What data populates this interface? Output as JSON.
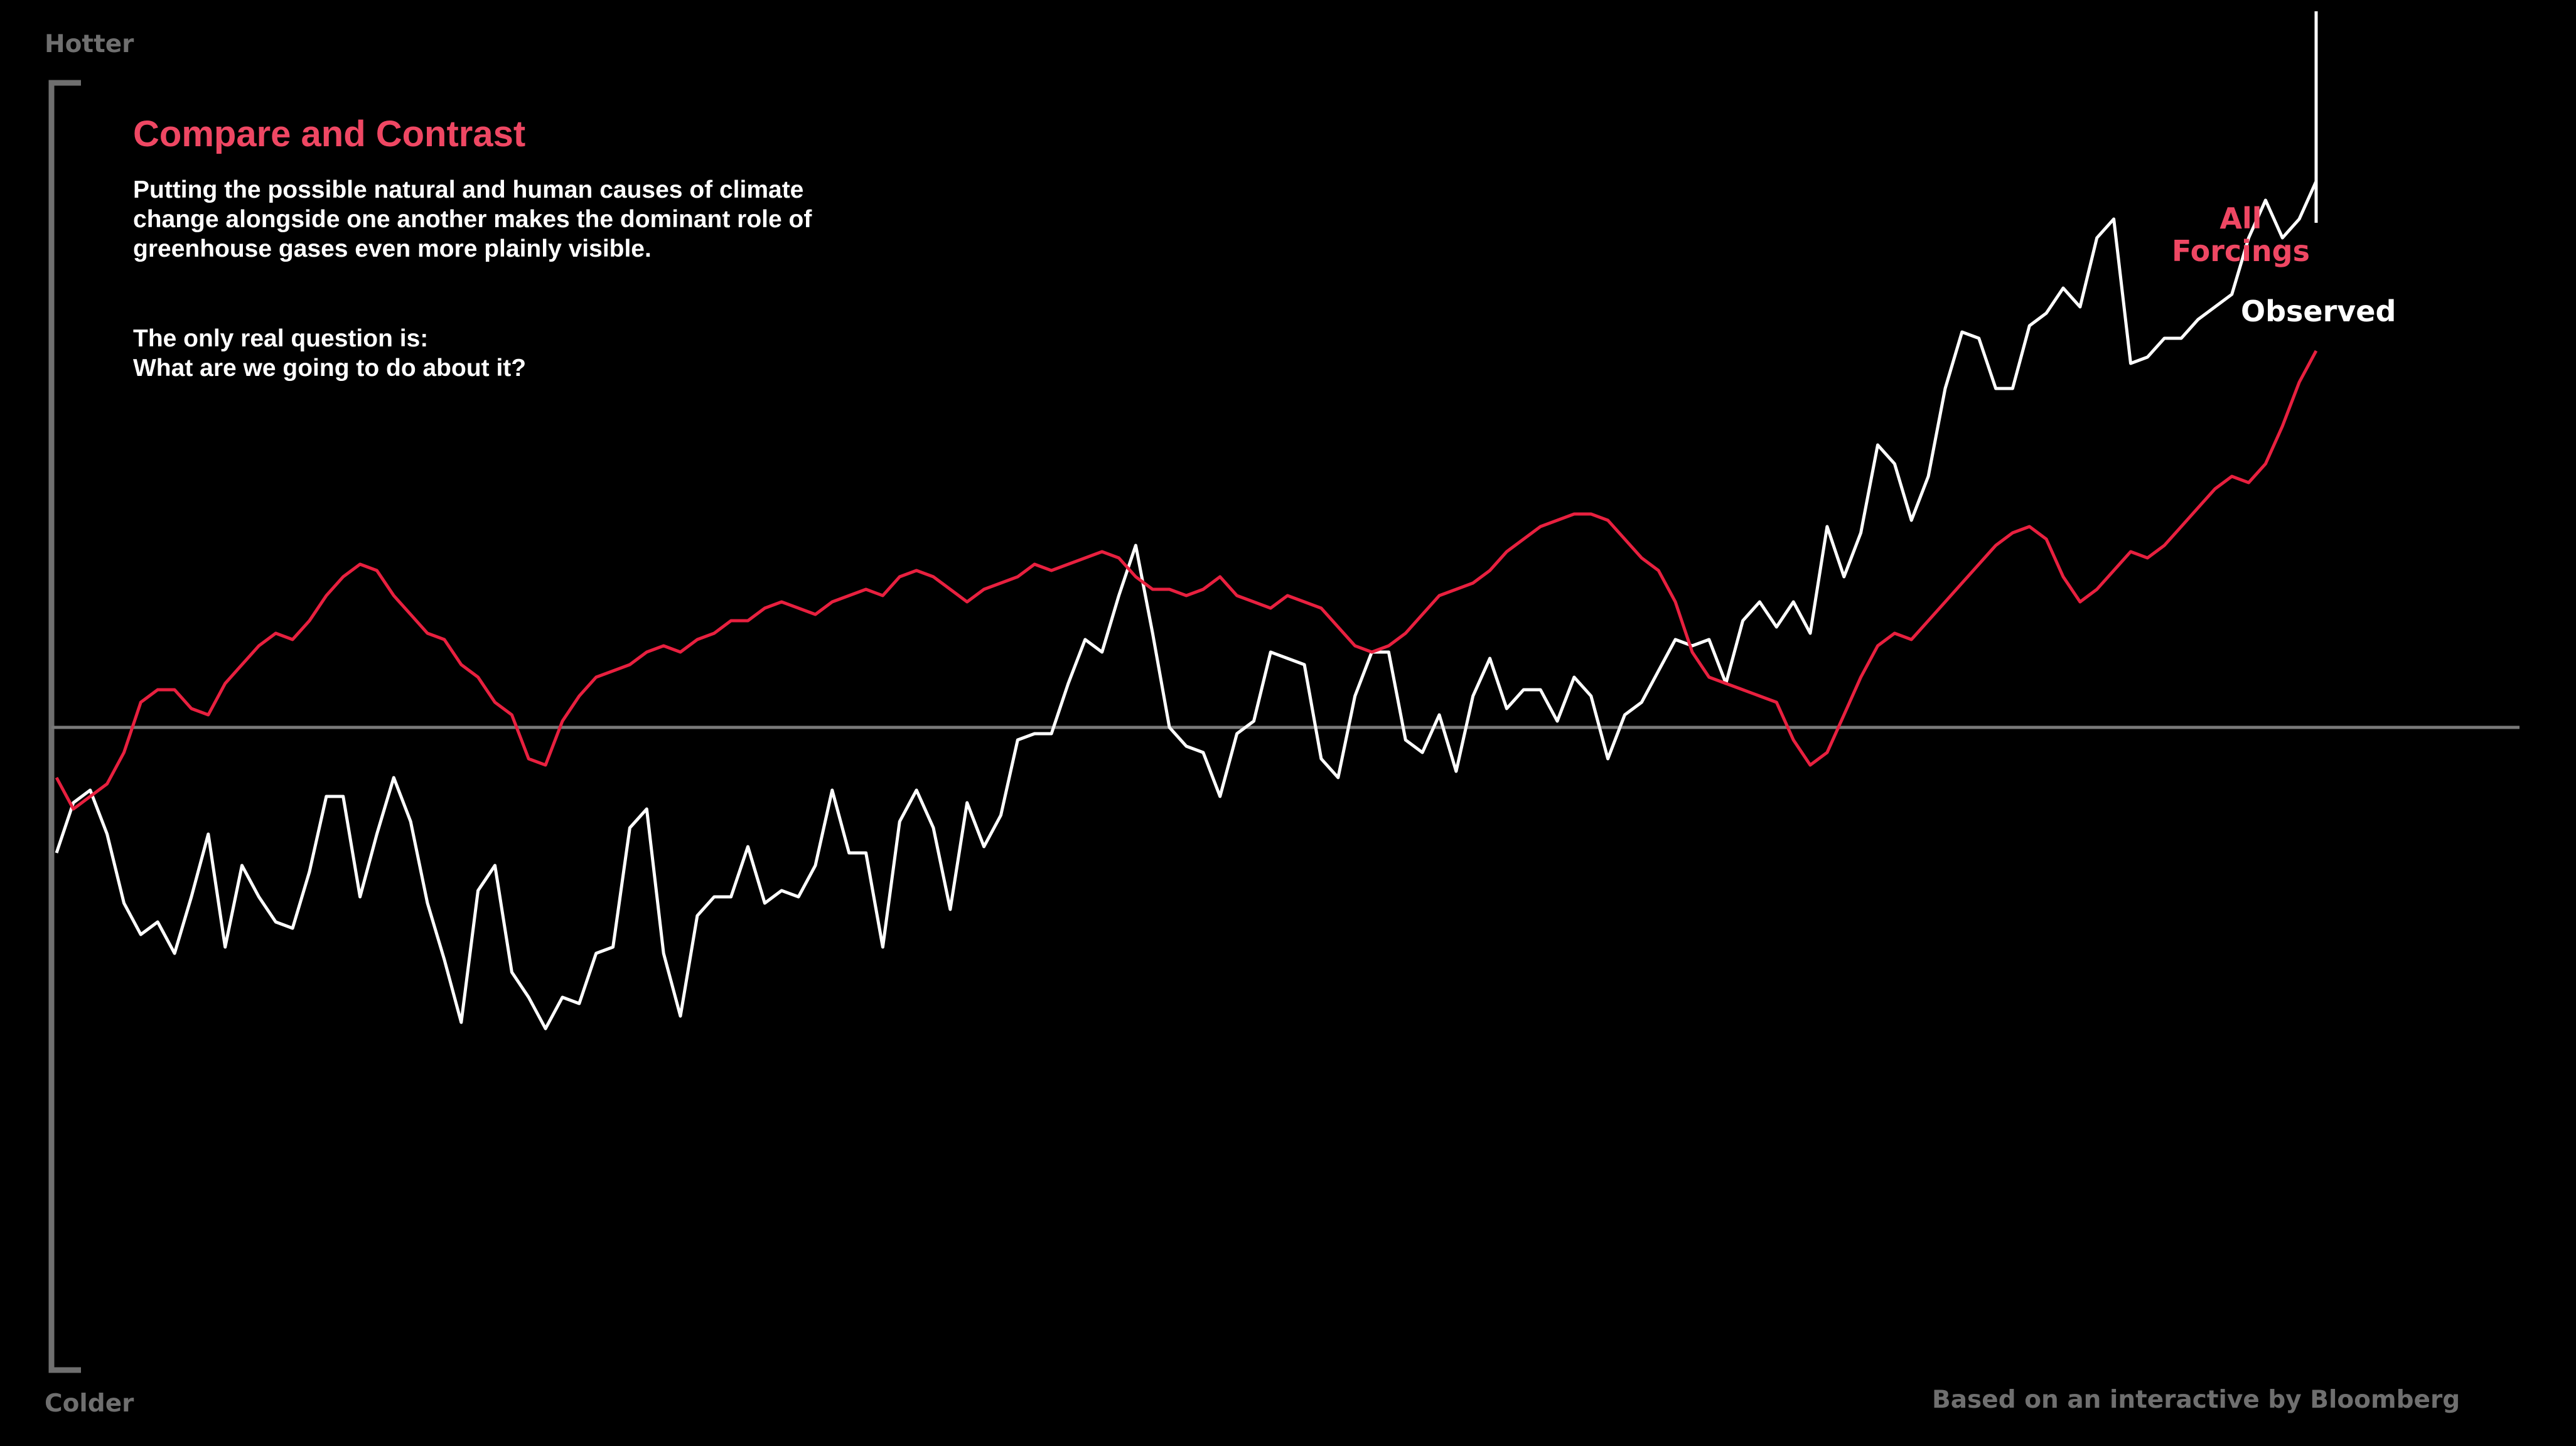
{
  "header": {
    "title": "Compare and Contrast",
    "paragraph_1": "Putting the possible natural and human causes of climate change alongside one another makes the dominant role of greenhouse gases even more plainly visible.",
    "paragraph_2_line_1": "The only real question is:",
    "paragraph_2_line_2": "What are we going to do about it?"
  },
  "footer": {
    "credit": "Based on an interactive by Bloomberg"
  },
  "colors": {
    "background": "#000000",
    "all_forcings": "#e8203f",
    "all_forcings_text": "#ef4763",
    "observed": "#ffffff",
    "axis": "#6f6f6f",
    "baseline": "#7a7a7a"
  },
  "chart_data": {
    "type": "line",
    "title": "Compare and Contrast",
    "axis_top_label": "Hotter",
    "axis_bottom_label": "Colder",
    "xlabel": "",
    "ylabel": "",
    "x_range": [
      1880,
      2014
    ],
    "ylim": [
      -1.0,
      1.0
    ],
    "baseline": 0,
    "x_ticks_shown": false,
    "y_ticks_shown": false,
    "legend": "direct labels at right end of lines",
    "series": [
      {
        "name": "All Forcings",
        "label": "All Forcings",
        "label_lines": [
          "All",
          "Forcings"
        ],
        "color": "#e8203f",
        "x_start": 1880,
        "x_step": 1,
        "values": [
          -0.08,
          -0.13,
          -0.11,
          -0.09,
          -0.04,
          0.04,
          0.06,
          0.06,
          0.03,
          0.02,
          0.07,
          0.1,
          0.13,
          0.15,
          0.14,
          0.17,
          0.21,
          0.24,
          0.26,
          0.25,
          0.21,
          0.18,
          0.15,
          0.14,
          0.1,
          0.08,
          0.04,
          0.02,
          -0.05,
          -0.06,
          0.01,
          0.05,
          0.08,
          0.09,
          0.1,
          0.12,
          0.13,
          0.12,
          0.14,
          0.15,
          0.17,
          0.17,
          0.19,
          0.2,
          0.19,
          0.18,
          0.2,
          0.21,
          0.22,
          0.21,
          0.24,
          0.25,
          0.24,
          0.22,
          0.2,
          0.22,
          0.23,
          0.24,
          0.26,
          0.25,
          0.26,
          0.27,
          0.28,
          0.27,
          0.24,
          0.22,
          0.22,
          0.21,
          0.22,
          0.24,
          0.21,
          0.2,
          0.19,
          0.21,
          0.2,
          0.19,
          0.16,
          0.13,
          0.12,
          0.13,
          0.15,
          0.18,
          0.21,
          0.22,
          0.23,
          0.25,
          0.28,
          0.3,
          0.32,
          0.33,
          0.34,
          0.34,
          0.33,
          0.3,
          0.27,
          0.25,
          0.2,
          0.12,
          0.08,
          0.07,
          0.06,
          0.05,
          0.04,
          -0.02,
          -0.06,
          -0.04,
          0.02,
          0.08,
          0.13,
          0.15,
          0.14,
          0.17,
          0.2,
          0.23,
          0.26,
          0.29,
          0.31,
          0.32,
          0.3,
          0.24,
          0.2,
          0.22,
          0.25,
          0.28,
          0.27,
          0.29,
          0.32,
          0.35,
          0.38,
          0.4,
          0.39,
          0.42,
          0.48,
          0.55,
          0.6
        ]
      },
      {
        "name": "Observed",
        "label": "Observed",
        "color": "#ffffff",
        "x_start": 1880,
        "x_step": 1,
        "values": [
          -0.2,
          -0.12,
          -0.1,
          -0.17,
          -0.28,
          -0.33,
          -0.31,
          -0.36,
          -0.27,
          -0.17,
          -0.35,
          -0.22,
          -0.27,
          -0.31,
          -0.32,
          -0.23,
          -0.11,
          -0.11,
          -0.27,
          -0.17,
          -0.08,
          -0.15,
          -0.28,
          -0.37,
          -0.47,
          -0.26,
          -0.22,
          -0.39,
          -0.43,
          -0.48,
          -0.43,
          -0.44,
          -0.36,
          -0.35,
          -0.16,
          -0.13,
          -0.36,
          -0.46,
          -0.3,
          -0.27,
          -0.27,
          -0.19,
          -0.28,
          -0.26,
          -0.27,
          -0.22,
          -0.1,
          -0.2,
          -0.2,
          -0.35,
          -0.15,
          -0.1,
          -0.16,
          -0.29,
          -0.12,
          -0.19,
          -0.14,
          -0.02,
          -0.01,
          -0.01,
          0.07,
          0.14,
          0.12,
          0.21,
          0.29,
          0.15,
          0.0,
          -0.03,
          -0.04,
          -0.11,
          -0.01,
          0.01,
          0.12,
          0.11,
          0.1,
          -0.05,
          -0.08,
          0.05,
          0.12,
          0.12,
          -0.02,
          -0.04,
          0.02,
          -0.07,
          0.05,
          0.11,
          0.03,
          0.06,
          0.06,
          0.01,
          0.08,
          0.05,
          -0.05,
          0.02,
          0.04,
          0.09,
          0.14,
          0.13,
          0.14,
          0.07,
          0.17,
          0.2,
          0.16,
          0.2,
          0.15,
          0.32,
          0.24,
          0.31,
          0.45,
          0.42,
          0.33,
          0.4,
          0.54,
          0.63,
          0.62,
          0.54,
          0.54,
          0.64,
          0.66,
          0.7,
          0.67,
          0.78,
          0.81,
          0.58,
          0.59,
          0.62,
          0.62,
          0.65,
          0.67,
          0.69,
          0.78,
          0.84,
          0.78,
          0.81,
          0.87
        ]
      }
    ]
  }
}
